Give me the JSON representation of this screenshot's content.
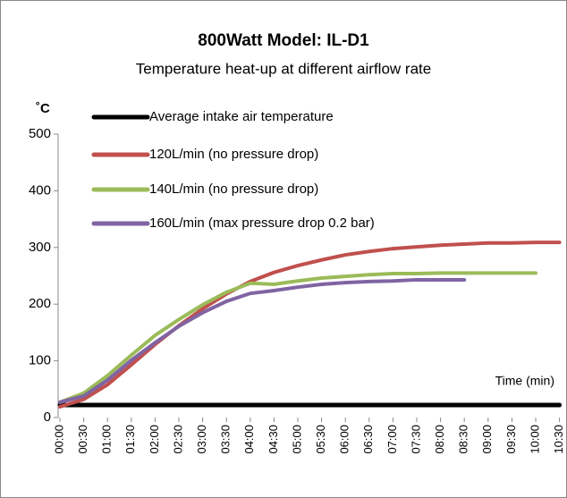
{
  "chart_data": {
    "type": "line",
    "title": "800Watt Model: IL-D1",
    "subtitle": "Temperature heat-up at different airflow rate",
    "y_label": "˚C",
    "x_label": "Time (min)",
    "categories": [
      "00:00",
      "00:30",
      "01:00",
      "01:30",
      "02:00",
      "02:30",
      "03:00",
      "03:30",
      "04:00",
      "04:30",
      "05:00",
      "05:30",
      "06:00",
      "06:30",
      "07:00",
      "07:30",
      "08:00",
      "08:30",
      "09:00",
      "09:30",
      "10:00",
      "10:30"
    ],
    "series": [
      {
        "name": "Average intake air temperature",
        "color": "#000000",
        "values": [
          22,
          22,
          22,
          22,
          22,
          22,
          22,
          22,
          22,
          22,
          22,
          22,
          22,
          22,
          22,
          22,
          22,
          22,
          22,
          22,
          22,
          22
        ]
      },
      {
        "name": "120L/min (no pressure drop)",
        "color": "#c0504d",
        "values": [
          19,
          32,
          58,
          93,
          129,
          162,
          192,
          218,
          240,
          256,
          268,
          278,
          287,
          293,
          298,
          301,
          304,
          306,
          308,
          308,
          309,
          309
        ]
      },
      {
        "name": "140L/min (no pressure drop)",
        "color": "#9bbb59",
        "values": [
          27,
          43,
          74,
          110,
          145,
          173,
          199,
          221,
          237,
          235,
          241,
          246,
          249,
          252,
          254,
          254,
          255,
          255,
          255,
          255,
          255,
          null
        ]
      },
      {
        "name": "160L/min (max pressure drop 0.2 bar)",
        "color": "#8064a2",
        "values": [
          27,
          38,
          66,
          101,
          132,
          161,
          185,
          205,
          219,
          224,
          230,
          235,
          238,
          240,
          241,
          243,
          243,
          243,
          null,
          null,
          null,
          null
        ]
      }
    ],
    "ylim": [
      0,
      500
    ],
    "yticks": [
      0,
      100,
      200,
      300,
      400,
      500
    ]
  }
}
